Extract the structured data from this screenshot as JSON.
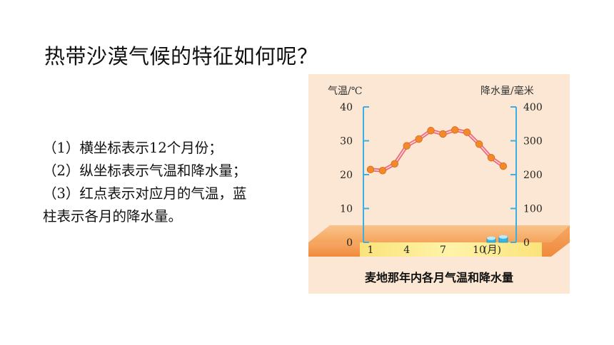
{
  "title": "热带沙漠气候的特征如何呢？",
  "notes": [
    "（1）横坐标表示12个月份；",
    "（2）纵坐标表示气温和降水量；",
    "（3）红点表示对应月的气温，蓝",
    "柱表示各月的降水量。"
  ],
  "chart_data": {
    "type": "line",
    "title": "麦地那年内各月气温和降水量",
    "xlabel": "(月)",
    "ylabel_left": "气温/℃",
    "ylabel_right": "降水量/毫米",
    "x_ticks": [
      "1",
      "4",
      "7",
      "10"
    ],
    "x": [
      1,
      2,
      3,
      4,
      5,
      6,
      7,
      8,
      9,
      10,
      11,
      12
    ],
    "ylim_left": [
      0,
      40
    ],
    "ylim_right": [
      0,
      400
    ],
    "y_ticks_left": [
      "0",
      "10",
      "20",
      "30",
      "40"
    ],
    "y_ticks_right": [
      "0",
      "100",
      "200",
      "300",
      "400"
    ],
    "series": [
      {
        "type": "line",
        "axis": "left",
        "values": [
          21.5,
          21.2,
          23.2,
          28.5,
          30.5,
          33.0,
          32.0,
          33.2,
          32.5,
          29.0,
          25.0,
          22.5
        ]
      },
      {
        "type": "bar",
        "axis": "right",
        "values": [
          0,
          0,
          0,
          0,
          0,
          0,
          0,
          0,
          0,
          0,
          12,
          16
        ]
      }
    ],
    "colors": {
      "line": "#e96a7a",
      "points": "#f28a2a",
      "bars": "#35b6e3",
      "band": "#f7b277",
      "background": "#fbe7d3"
    },
    "grid": false
  }
}
